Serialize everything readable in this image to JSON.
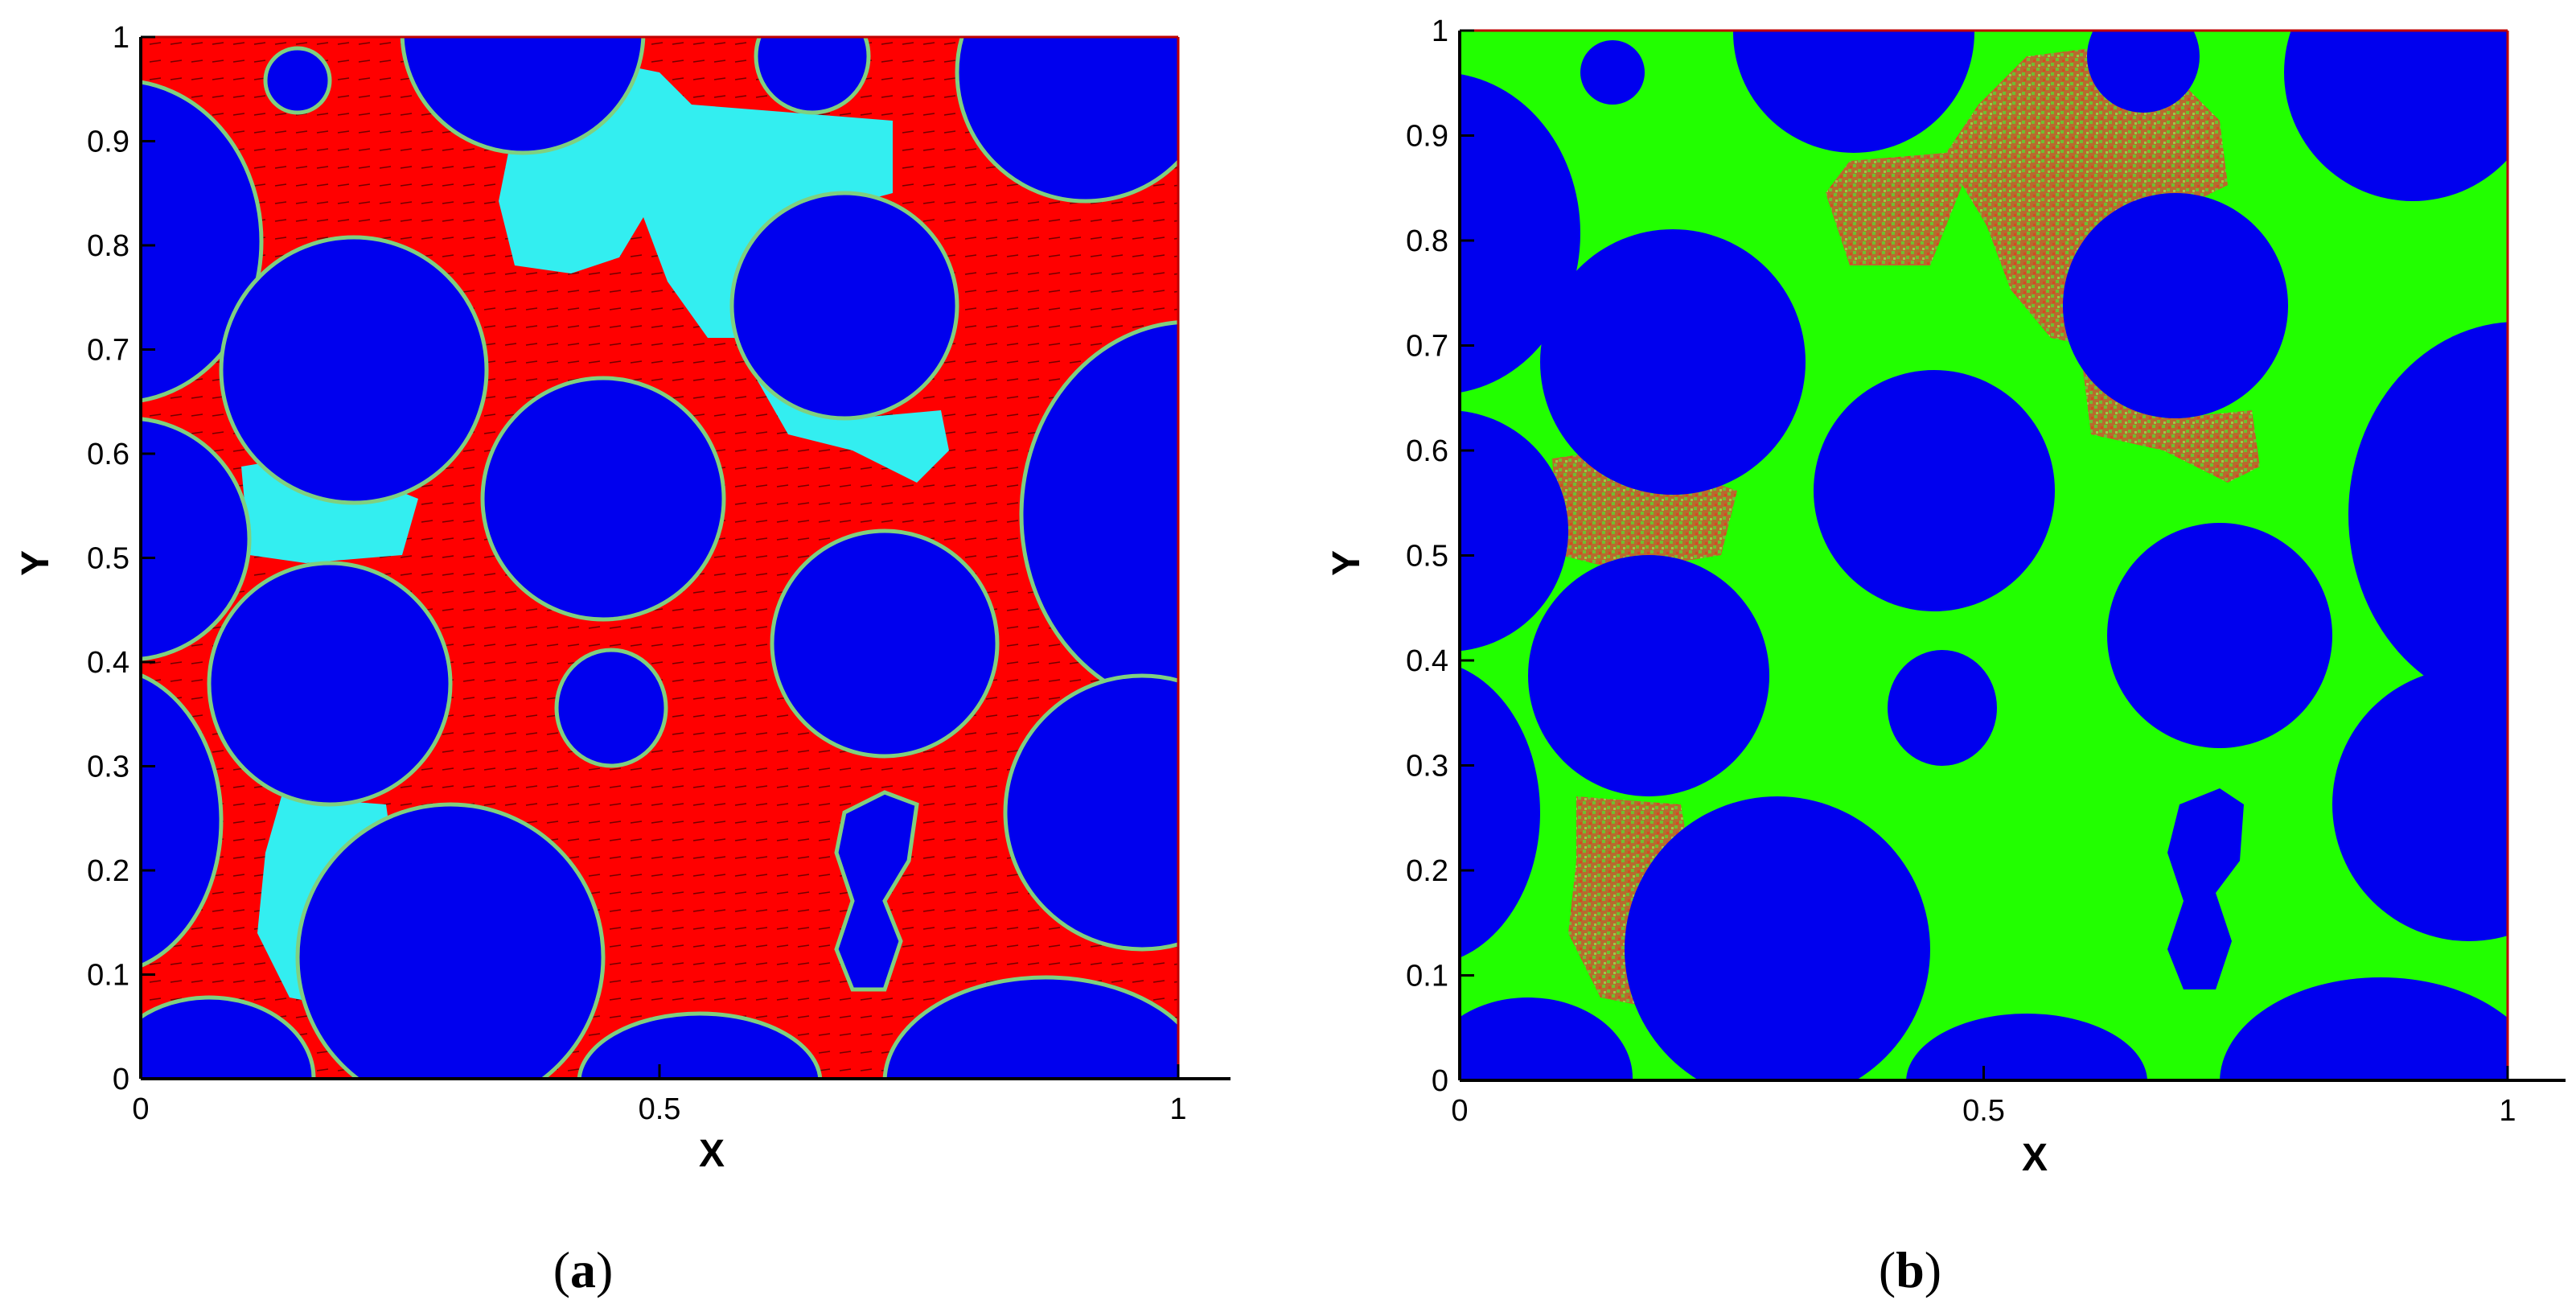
{
  "chart_data": [
    {
      "type": "heatmap",
      "panel": "a",
      "caption": {
        "open": "(",
        "letter": "a",
        "close": ")"
      },
      "xlabel": "X",
      "ylabel": "Y",
      "xlim": [
        0,
        1
      ],
      "ylim": [
        0,
        1
      ],
      "xticks": [
        "0",
        "0.5",
        "1"
      ],
      "yticks": [
        "0",
        "0.1",
        "0.2",
        "0.3",
        "0.4",
        "0.5",
        "0.6",
        "0.7",
        "0.8",
        "0.9",
        "1"
      ],
      "grid": false,
      "legend": "none",
      "colors": {
        "solid": "#0000ee",
        "phase_main": "#ff0000",
        "phase_secondary": "#33eef0",
        "interface": "#7fd07f",
        "vectors": "#000000"
      },
      "vector_field": true
    },
    {
      "type": "heatmap",
      "panel": "b",
      "caption": {
        "open": "(",
        "letter": "b",
        "close": ")"
      },
      "xlabel": "X",
      "ylabel": "Y",
      "xlim": [
        0,
        1
      ],
      "ylim": [
        0,
        1
      ],
      "xticks": [
        "0",
        "0.5",
        "1"
      ],
      "yticks": [
        "0",
        "0.1",
        "0.2",
        "0.3",
        "0.4",
        "0.5",
        "0.6",
        "0.7",
        "0.8",
        "0.9",
        "1"
      ],
      "grid": false,
      "legend": "none",
      "colors": {
        "solid": "#0000ee",
        "phase_main": "#22ff00",
        "phase_secondary_a": "#c0552a",
        "phase_secondary_b": "#8fbf3a",
        "interface": "#22ff00"
      },
      "vector_field": false
    }
  ]
}
